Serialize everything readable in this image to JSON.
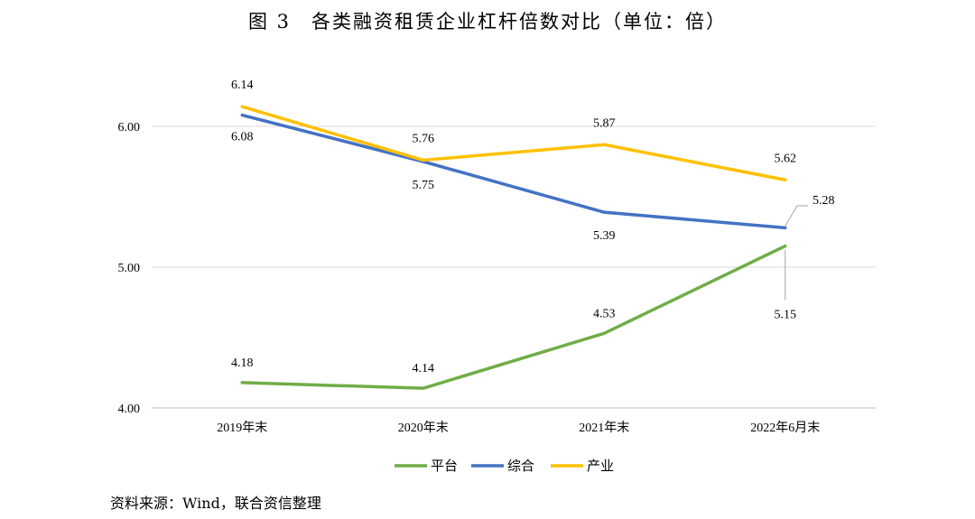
{
  "title": "图 3　各类融资租赁企业杠杆倍数对比（单位：倍）",
  "source": "资料来源：Wind，联合资信整理",
  "chart_data": {
    "type": "line",
    "title": "图 3　各类融资租赁企业杠杆倍数对比（单位：倍）",
    "xlabel": "",
    "ylabel": "",
    "categories": [
      "2019年末",
      "2020年末",
      "2021年末",
      "2022年6月末"
    ],
    "ylim": [
      4.0,
      6.0
    ],
    "yticks": [
      "4.00",
      "5.00",
      "6.00"
    ],
    "grid": true,
    "legend_position": "bottom",
    "series": [
      {
        "name": "平台",
        "color": "#70AD47",
        "values": [
          4.18,
          4.14,
          4.53,
          5.15
        ],
        "labels": [
          "4.18",
          "4.14",
          "4.53",
          "5.15"
        ]
      },
      {
        "name": "综合",
        "color": "#4472C4",
        "values": [
          6.08,
          5.75,
          5.39,
          5.28
        ],
        "labels": [
          "6.08",
          "5.75",
          "5.39",
          "5.28"
        ]
      },
      {
        "name": "产业",
        "color": "#FFC000",
        "values": [
          6.14,
          5.76,
          5.87,
          5.62
        ],
        "labels": [
          "6.14",
          "5.76",
          "5.87",
          "5.62"
        ]
      }
    ]
  }
}
